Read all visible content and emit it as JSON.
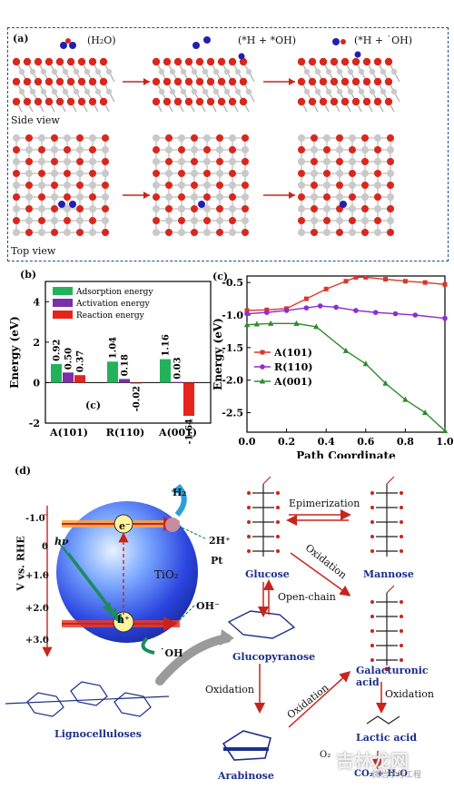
{
  "panel_a": {
    "label": "(a)",
    "states": [
      "(H₂O)",
      "(*H + *OH)",
      "(*H + ˙OH)"
    ],
    "side_view": "Side view",
    "top_view": "Top view"
  },
  "panel_b": {
    "label": "(b)",
    "sublabel": "(c)",
    "legend": [
      "Adsorption energy",
      "Activation energy",
      "Reaction energy"
    ]
  },
  "panel_c": {
    "label": "(c)"
  },
  "panel_d": {
    "label": "(d)",
    "axis_label": "V vs. RHE",
    "axis_ticks": [
      "-1.0",
      "0",
      "+1.0",
      "+2.0",
      "+3.0"
    ],
    "electron": "e⁻",
    "hole": "h⁺",
    "tio2": "TiO₂",
    "hv": "hν",
    "h2": "H₂",
    "two_h": "2H⁺",
    "pt": "Pt",
    "oh_minus": "OH⁻",
    "oh_rad": "˙OH",
    "lignocellulose": "Lignocelluloses",
    "glucose": "Glucose",
    "mannose": "Mannose",
    "epimerization": "Epimerization",
    "oxidation": "Oxidation",
    "open_chain": "Open-chain",
    "glucopyranose": "Glucopyranose",
    "galacturonic": "Galacturonic acid",
    "arabinose": "Arabinose",
    "lactic": "Lactic acid",
    "co2": "CO₂ + H₂O",
    "o2": "O₂",
    "watermark_cn": "吉林龙网",
    "watermark_small": "微信学号工程"
  },
  "colors": {
    "adsorption": "#22b35a",
    "activation": "#7b2fa8",
    "reaction": "#e8231c",
    "line_a101": "#d9372c",
    "line_r110": "#8b2fd0",
    "line_a001": "#2e8b2e",
    "dashed_border": "#1e4e9a"
  },
  "chart_data": [
    {
      "type": "bar",
      "ylabel": "Energy (eV)",
      "ylim": [
        -2,
        5
      ],
      "yticks": [
        "-2",
        "0",
        "2",
        "4"
      ],
      "categories": [
        "A(101)",
        "R(110)",
        "A(001)"
      ],
      "series": [
        {
          "name": "Adsorption energy",
          "values": [
            0.92,
            1.04,
            1.16
          ]
        },
        {
          "name": "Activation energy",
          "values": [
            0.5,
            0.18,
            0.03
          ]
        },
        {
          "name": "Reaction energy",
          "values": [
            0.37,
            -0.02,
            -1.64
          ]
        }
      ],
      "data_labels": [
        [
          "0.92",
          "0.50",
          "0.37"
        ],
        [
          "1.04",
          "0.18",
          "-0.02"
        ],
        [
          "1.16",
          "0.03",
          "-1.64"
        ]
      ],
      "legend_position": "top-left"
    },
    {
      "type": "line",
      "xlabel": "Path Coordinate",
      "ylabel": "Energy (eV)",
      "xlim": [
        0,
        1.0
      ],
      "ylim": [
        -2.8,
        -0.4
      ],
      "xticks": [
        "0.0",
        "0.2",
        "0.4",
        "0.6",
        "0.8",
        "1.0"
      ],
      "yticks": [
        "-0.5",
        "-1.0",
        "-1.5",
        "-2.0",
        "-2.5"
      ],
      "legend_position": "left",
      "series": [
        {
          "name": "A(101)",
          "x": [
            0,
            0.1,
            0.2,
            0.3,
            0.4,
            0.5,
            0.55,
            0.6,
            0.7,
            0.8,
            0.9,
            1.0
          ],
          "y": [
            -0.93,
            -0.92,
            -0.9,
            -0.75,
            -0.6,
            -0.48,
            -0.42,
            -0.42,
            -0.45,
            -0.48,
            -0.5,
            -0.53
          ]
        },
        {
          "name": "R(110)",
          "x": [
            0,
            0.1,
            0.2,
            0.3,
            0.37,
            0.45,
            0.55,
            0.65,
            0.75,
            0.85,
            1.0
          ],
          "y": [
            -0.98,
            -0.96,
            -0.93,
            -0.89,
            -0.86,
            -0.88,
            -0.93,
            -0.96,
            -0.98,
            -1.0,
            -1.05
          ]
        },
        {
          "name": "A(001)",
          "x": [
            0,
            0.05,
            0.12,
            0.25,
            0.35,
            0.5,
            0.6,
            0.7,
            0.8,
            0.9,
            1.0
          ],
          "y": [
            -1.15,
            -1.14,
            -1.13,
            -1.13,
            -1.18,
            -1.55,
            -1.75,
            -2.05,
            -2.3,
            -2.5,
            -2.78
          ]
        }
      ]
    }
  ]
}
